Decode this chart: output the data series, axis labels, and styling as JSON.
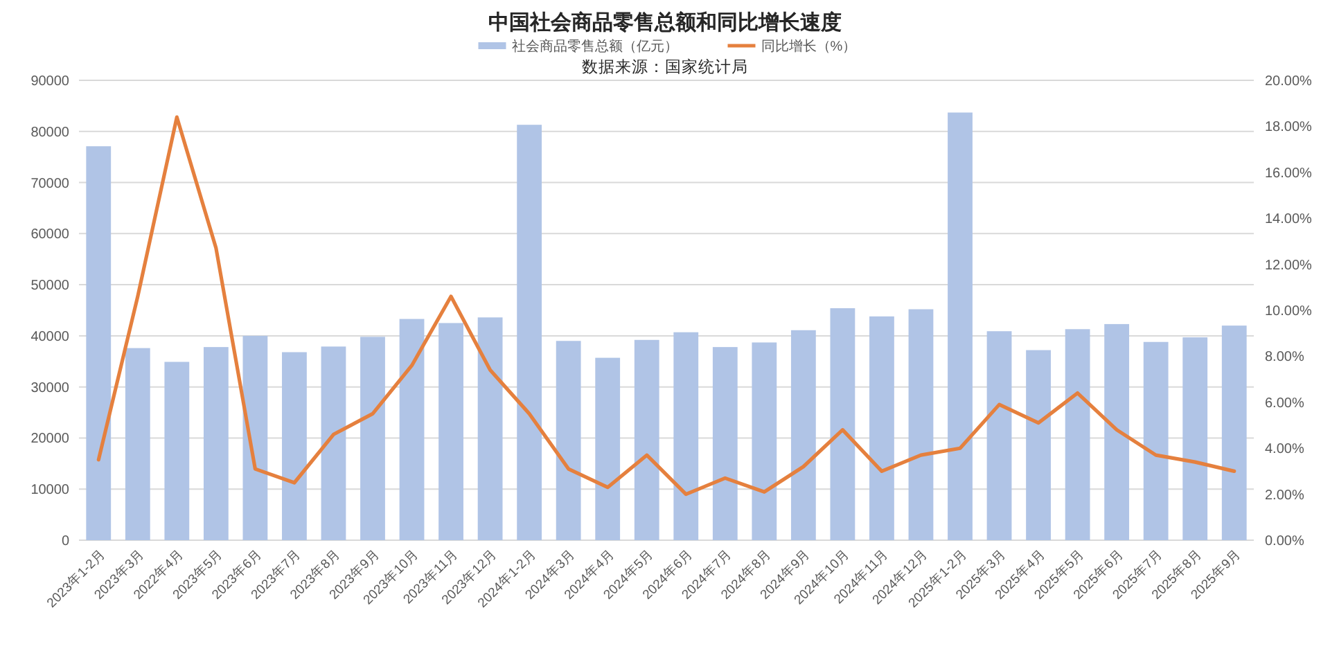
{
  "chart_data": {
    "type": "bar",
    "title": "中国社会商品零售总额和同比增长速度",
    "annotations": [
      "数据来源：国家统计局"
    ],
    "categories": [
      "2023年1-2月",
      "2023年3月",
      "2022年4月",
      "2023年5月",
      "2023年6月",
      "2023年7月",
      "2023年8月",
      "2023年9月",
      "2023年10月",
      "2023年11月",
      "2023年12月",
      "2024年1-2月",
      "2024年3月",
      "2024年4月",
      "2024年5月",
      "2024年6月",
      "2024年7月",
      "2024年8月",
      "2024年9月",
      "2024年10月",
      "2024年11月",
      "2024年12月",
      "2025年1-2月",
      "2025年3月",
      "2025年4月",
      "2025年5月",
      "2025年6月",
      "2025年7月",
      "2025年8月",
      "2025年9月"
    ],
    "series": [
      {
        "name": "社会商品零售总额（亿元）",
        "color": "#b0c4e6",
        "values": [
          77100,
          37600,
          34900,
          37800,
          40000,
          36800,
          37900,
          39800,
          43300,
          42500,
          43600,
          81300,
          39000,
          35700,
          39200,
          40700,
          37800,
          38700,
          41100,
          45400,
          43800,
          45200,
          83700,
          40900,
          37200,
          41300,
          42300,
          38800,
          39700,
          42000
        ]
      },
      {
        "name": "同比增长（%）",
        "type": "line",
        "axis": "y2",
        "color": "#e5803e",
        "values": [
          3.5,
          10.6,
          18.4,
          12.7,
          3.1,
          2.5,
          4.6,
          5.5,
          7.6,
          10.6,
          7.4,
          5.5,
          3.1,
          2.3,
          3.7,
          2.0,
          2.7,
          2.1,
          3.2,
          4.8,
          3.0,
          3.7,
          4.0,
          5.9,
          5.1,
          6.4,
          4.8,
          3.7,
          3.4,
          3.0
        ]
      }
    ],
    "ylim": [
      0,
      90000
    ],
    "yticks": [
      0,
      10000,
      20000,
      30000,
      40000,
      50000,
      60000,
      70000,
      80000,
      90000
    ],
    "y2lim": [
      0,
      20
    ],
    "y2ticks": [
      {
        "value": 0,
        "label": "0.00%"
      },
      {
        "value": 2,
        "label": "2.00%"
      },
      {
        "value": 4,
        "label": "4.00%"
      },
      {
        "value": 6,
        "label": "6.00%"
      },
      {
        "value": 8,
        "label": "8.00%"
      },
      {
        "value": 10,
        "label": "10.00%"
      },
      {
        "value": 12,
        "label": "12.00%"
      },
      {
        "value": 14,
        "label": "14.00%"
      },
      {
        "value": 16,
        "label": "16.00%"
      },
      {
        "value": 18,
        "label": "18.00%"
      },
      {
        "value": 20,
        "label": "20.00%"
      }
    ],
    "grid": "y",
    "legend": "top",
    "line_style": "solid"
  }
}
